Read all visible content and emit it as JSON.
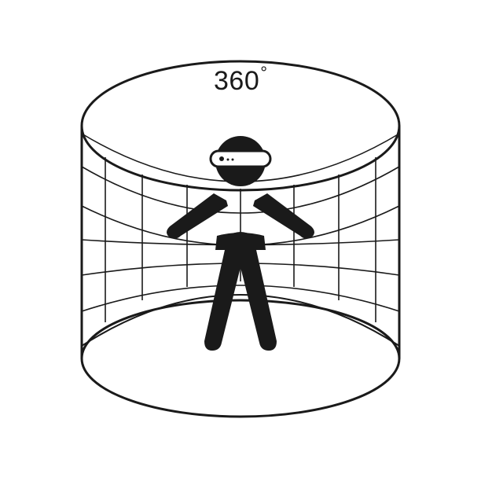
{
  "illustration": {
    "title_value": "360",
    "title_unit": "°",
    "stroke_color": "#1a1a1a",
    "fill_color": "#1a1a1a",
    "background_color": "#ffffff",
    "icons": [
      "vr-cylinder-icon",
      "vr-headset-icon",
      "person-icon"
    ]
  }
}
